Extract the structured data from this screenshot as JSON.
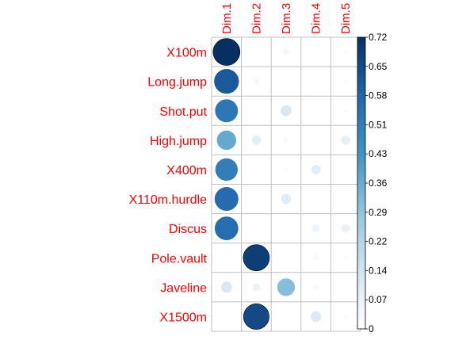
{
  "chart_data": {
    "type": "heatmap",
    "style": "corrplot-circles",
    "rows": [
      "X100m",
      "Long.jump",
      "Shot.put",
      "High.jump",
      "X400m",
      "X110m.hurdle",
      "Discus",
      "Pole.vault",
      "Javeline",
      "X1500m"
    ],
    "columns": [
      "Dim.1",
      "Dim.2",
      "Dim.3",
      "Dim.4",
      "Dim.5"
    ],
    "values": [
      [
        0.72,
        0.01,
        0.04,
        0.0,
        0.02
      ],
      [
        0.61,
        0.03,
        0.01,
        0.0,
        0.02
      ],
      [
        0.52,
        0.0,
        0.12,
        0.0,
        0.02
      ],
      [
        0.37,
        0.09,
        0.03,
        0.0,
        0.08
      ],
      [
        0.5,
        0.02,
        0.02,
        0.09,
        0.0
      ],
      [
        0.56,
        0.0,
        0.1,
        0.0,
        0.01
      ],
      [
        0.55,
        0.0,
        0.01,
        0.06,
        0.07
      ],
      [
        0.01,
        0.68,
        0.0,
        0.03,
        0.02
      ],
      [
        0.12,
        0.06,
        0.31,
        0.03,
        0.01
      ],
      [
        0.0,
        0.65,
        0.01,
        0.11,
        0.02
      ]
    ],
    "legend": {
      "ticks": [
        "0",
        "0.07",
        "0.14",
        "0.22",
        "0.29",
        "0.36",
        "0.43",
        "0.51",
        "0.58",
        "0.65",
        "0.72"
      ],
      "min": 0,
      "max": 0.72
    },
    "grid": true,
    "label_color": "#ff0000",
    "colormap": [
      "#ffffff",
      "#d1e5f0",
      "#92c5de",
      "#4393c3",
      "#2166ac",
      "#053061"
    ]
  }
}
